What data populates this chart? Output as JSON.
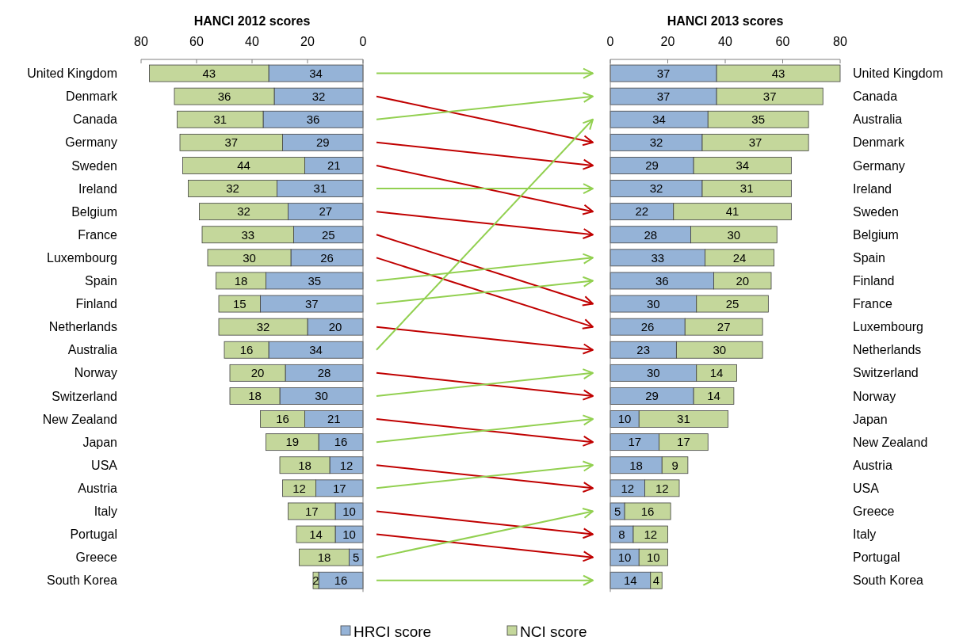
{
  "chart_data": [
    {
      "type": "bar",
      "title": "HANCI 2012 scores",
      "orientation": "horizontal",
      "stacked": true,
      "data_labels": true,
      "xlim": [
        80,
        0
      ],
      "xticks": [
        80,
        60,
        40,
        20,
        0
      ],
      "categories": [
        "United Kingdom",
        "Denmark",
        "Canada",
        "Germany",
        "Sweden",
        "Ireland",
        "Belgium",
        "France",
        "Luxembourg",
        "Spain",
        "Finland",
        "Netherlands",
        "Australia",
        "Norway",
        "Switzerland",
        "New Zealand",
        "Japan",
        "USA",
        "Austria",
        "Italy",
        "Portugal",
        "Greece",
        "South Korea"
      ],
      "series": [
        {
          "color": "#95b3d7",
          "values": [
            34,
            32,
            36,
            29,
            21,
            31,
            27,
            25,
            26,
            35,
            37,
            20,
            34,
            28,
            30,
            21,
            16,
            12,
            17,
            10,
            10,
            5,
            16
          ]
        },
        {
          "color": "#c4d79b",
          "values": [
            43,
            36,
            31,
            37,
            44,
            32,
            32,
            33,
            30,
            18,
            15,
            32,
            16,
            20,
            18,
            16,
            19,
            18,
            12,
            17,
            14,
            18,
            2
          ]
        }
      ]
    },
    {
      "type": "bar",
      "title": "HANCI 2013 scores",
      "orientation": "horizontal",
      "stacked": true,
      "data_labels": true,
      "xlim": [
        0,
        80
      ],
      "xticks": [
        0,
        20,
        40,
        60,
        80
      ],
      "legend": "bottom",
      "categories": [
        "United Kingdom",
        "Canada",
        "Australia",
        "Denmark",
        "Germany",
        "Ireland",
        "Sweden",
        "Belgium",
        "Spain",
        "Finland",
        "France",
        "Luxembourg",
        "Netherlands",
        "Switzerland",
        "Norway",
        "Japan",
        "New Zealand",
        "Austria",
        "USA",
        "Greece",
        "Italy",
        "Portugal",
        "South Korea"
      ],
      "series": [
        {
          "name": "HRCI score",
          "color": "#95b3d7",
          "values": [
            37,
            37,
            34,
            32,
            29,
            32,
            22,
            28,
            33,
            36,
            30,
            26,
            23,
            30,
            29,
            10,
            17,
            18,
            12,
            5,
            8,
            10,
            14
          ]
        },
        {
          "name": "NCI score",
          "color": "#c4d79b",
          "values": [
            43,
            37,
            35,
            37,
            34,
            31,
            41,
            30,
            24,
            20,
            25,
            27,
            30,
            14,
            14,
            31,
            17,
            9,
            12,
            16,
            12,
            10,
            4
          ]
        }
      ]
    }
  ]
}
